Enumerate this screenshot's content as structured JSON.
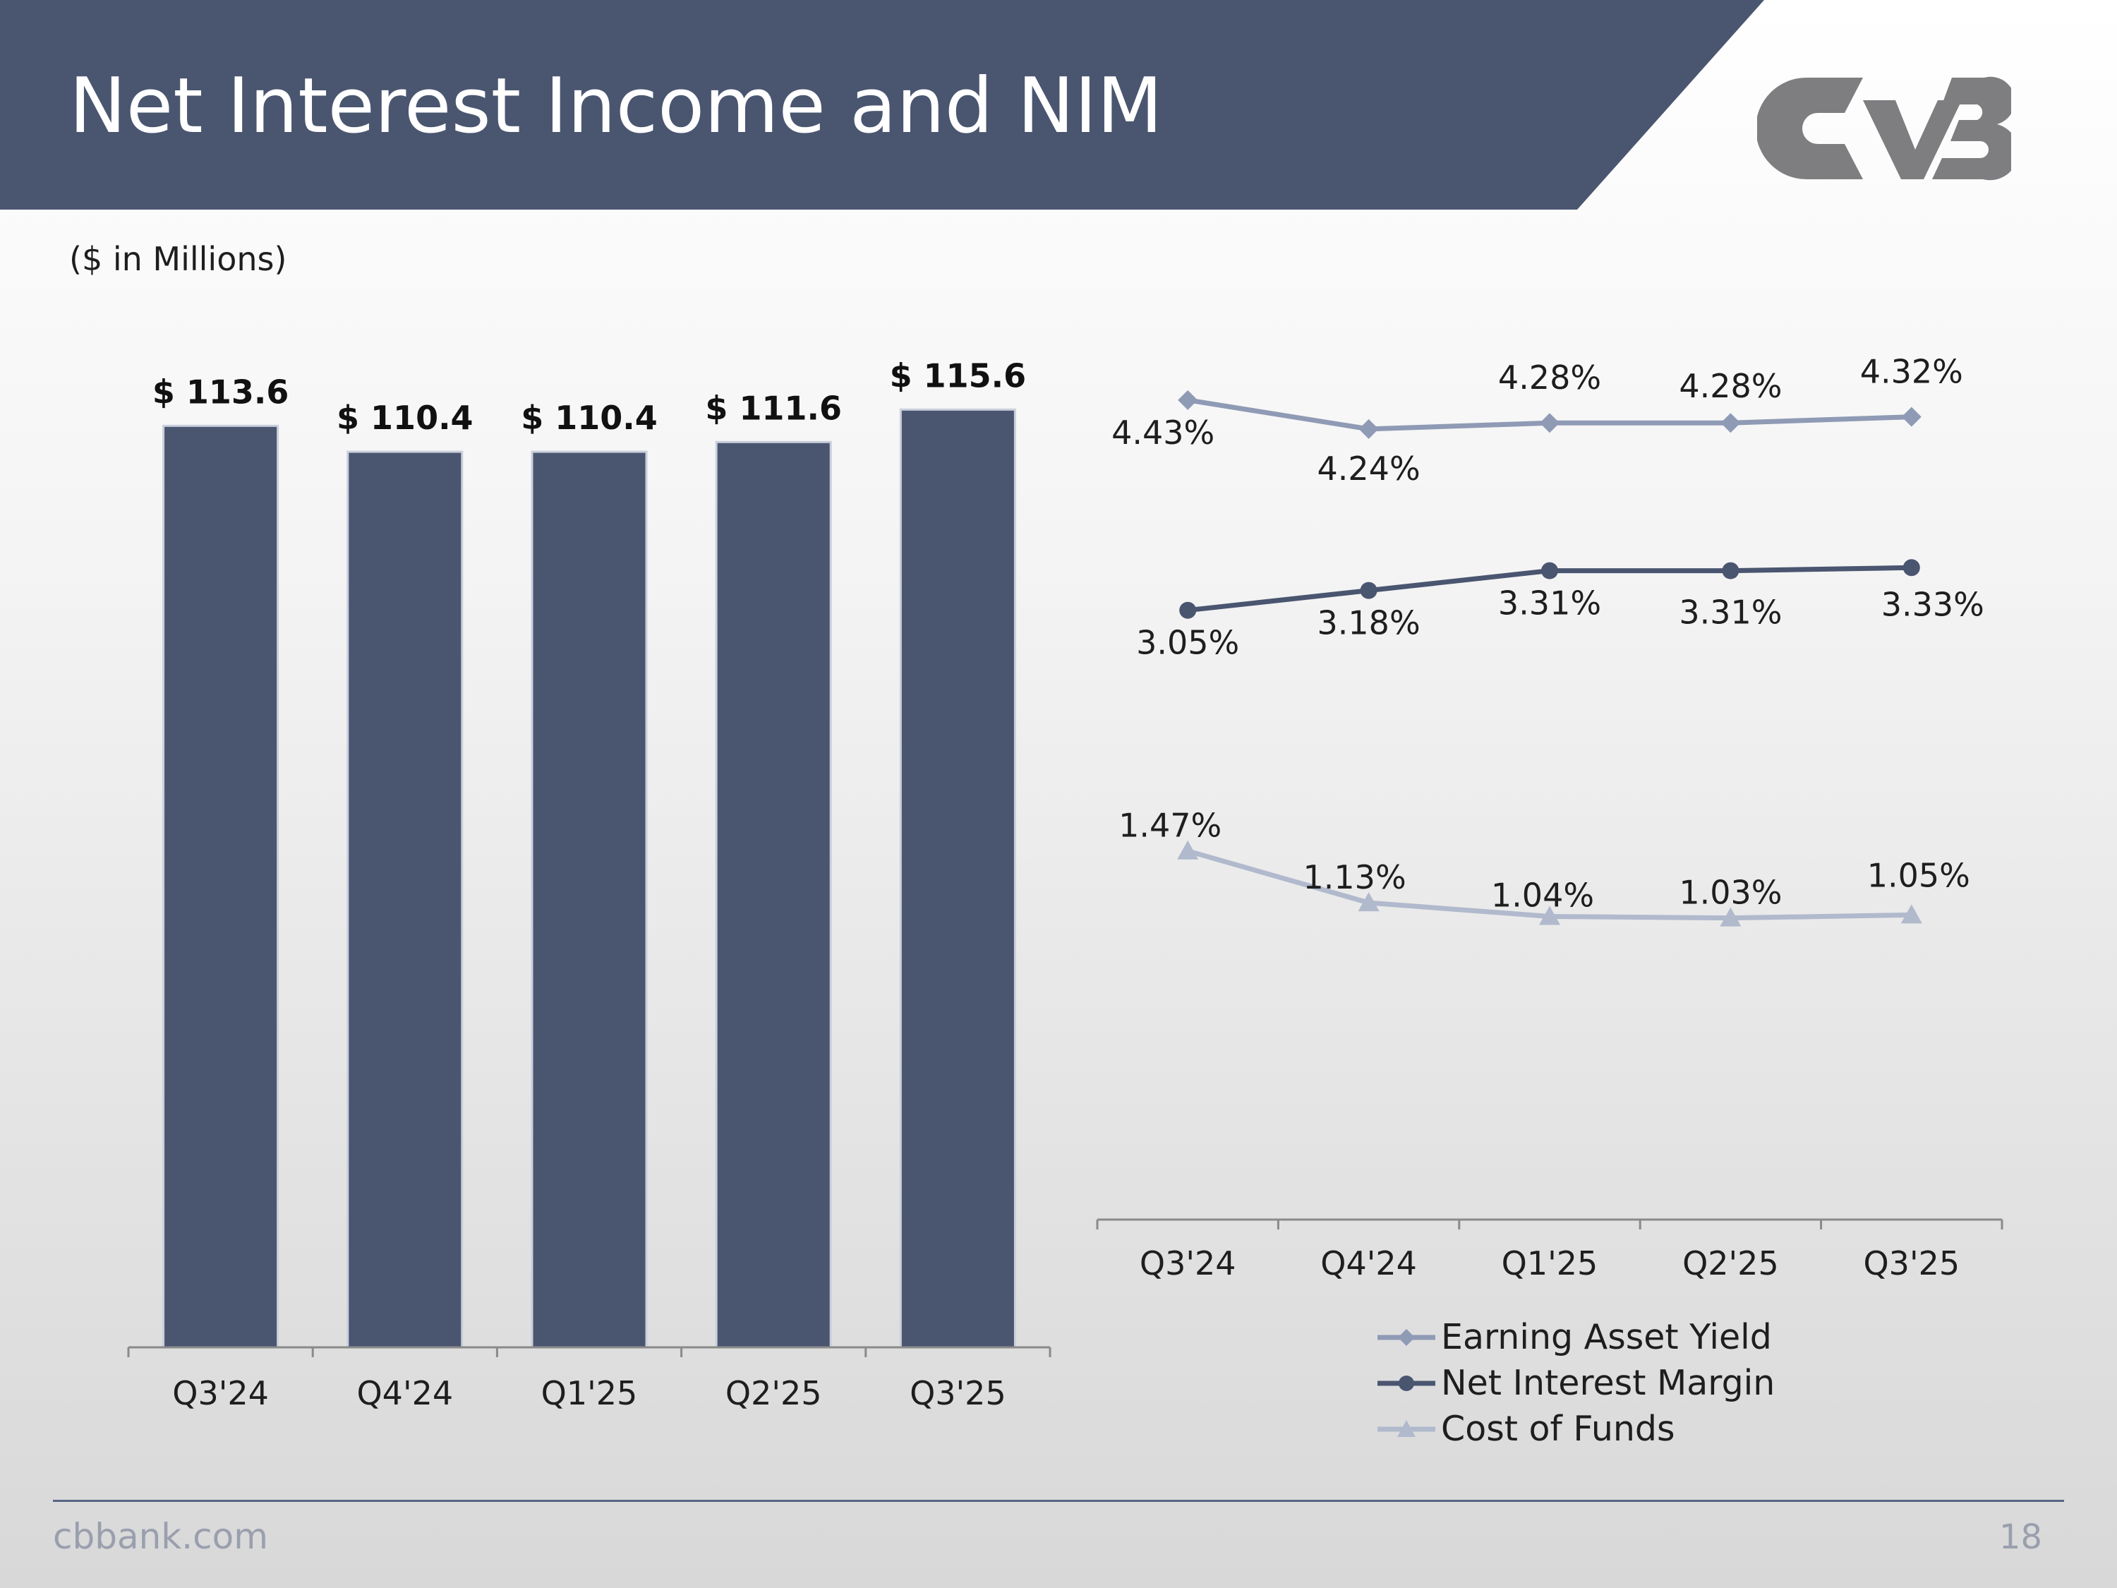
{
  "slide": {
    "title": "Net Interest Income and NIM",
    "units_note": "($ in Millions)",
    "footer_site": "cbbank.com",
    "page_number": "18"
  },
  "colors": {
    "header": "#4a5670",
    "bar": "#4a5570",
    "bar_border": "#c9cfdc",
    "earning_asset_yield": "#8f9ab5",
    "net_interest_margin": "#4a5570",
    "cost_of_funds": "#b1b9cd",
    "logo": "#7e7e80"
  },
  "chart_data": [
    {
      "type": "bar",
      "title": "Net Interest Income",
      "units": "$ in Millions",
      "categories": [
        "Q3'24",
        "Q4'24",
        "Q1'25",
        "Q2'25",
        "Q3'25"
      ],
      "values": [
        113.6,
        110.4,
        110.4,
        111.6,
        115.6
      ],
      "data_labels": [
        "$ 113.6",
        "$ 110.4",
        "$ 110.4",
        "$ 111.6",
        "$ 115.6"
      ],
      "ylim": [
        0,
        116.5
      ]
    },
    {
      "type": "line",
      "title": "NIM",
      "categories": [
        "Q3'24",
        "Q4'24",
        "Q1'25",
        "Q2'25",
        "Q3'25"
      ],
      "series": [
        {
          "name": "Earning Asset Yield",
          "marker": "diamond",
          "values": [
            4.43,
            4.24,
            4.28,
            4.28,
            4.32
          ],
          "labels": [
            "4.43%",
            "4.24%",
            "4.28%",
            "4.28%",
            "4.32%"
          ]
        },
        {
          "name": "Net Interest Margin",
          "marker": "circle",
          "values": [
            3.05,
            3.18,
            3.31,
            3.31,
            3.33
          ],
          "labels": [
            "3.05%",
            "3.18%",
            "3.31%",
            "3.31%",
            "3.33%"
          ]
        },
        {
          "name": "Cost of Funds",
          "marker": "triangle",
          "values": [
            1.47,
            1.13,
            1.04,
            1.03,
            1.05
          ],
          "labels": [
            "1.47%",
            "1.13%",
            "1.04%",
            "1.03%",
            "1.05%"
          ]
        }
      ],
      "ylim": [
        -0.95,
        4.8
      ],
      "legend": "bottom"
    }
  ]
}
